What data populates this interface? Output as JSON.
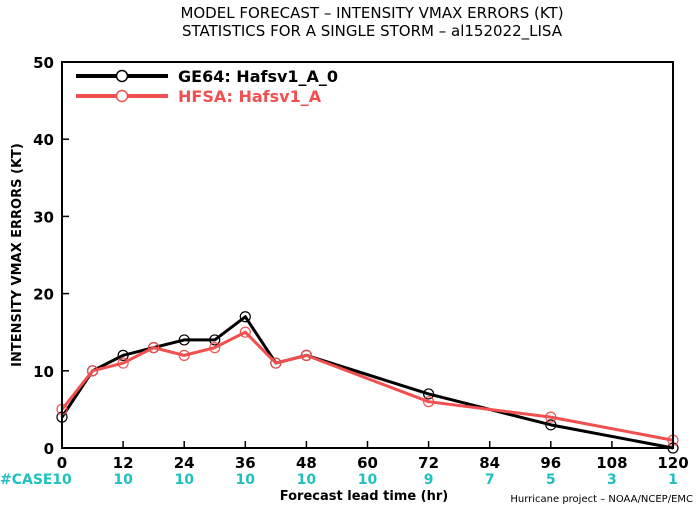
{
  "chart_data": {
    "type": "line",
    "title_line1": "MODEL FORECAST – INTENSITY VMAX ERRORS (KT)",
    "title_line2": "STATISTICS FOR A SINGLE STORM – al152022_LISA",
    "xlabel": "Forecast lead time (hr)",
    "ylabel": "INTENSITY VMAX ERRORS (KT)",
    "xlim": [
      0,
      120
    ],
    "ylim": [
      0,
      50
    ],
    "xticks": [
      0,
      12,
      24,
      36,
      48,
      60,
      72,
      84,
      96,
      108,
      120
    ],
    "yticks": [
      0,
      10,
      20,
      30,
      40,
      50
    ],
    "legend_position": "top-left",
    "series": [
      {
        "name": "GE64: Hafsv1_A_0",
        "color": "#000000",
        "x": [
          0,
          6,
          12,
          18,
          24,
          30,
          36,
          42,
          48,
          72,
          96,
          120
        ],
        "y": [
          4,
          10,
          12,
          13,
          14,
          14,
          17,
          11,
          12,
          7,
          3,
          0
        ]
      },
      {
        "name": "HFSA: Hafsv1_A",
        "color": "#f05050",
        "x": [
          0,
          6,
          12,
          18,
          24,
          30,
          36,
          42,
          48,
          72,
          96,
          120
        ],
        "y": [
          5,
          10,
          11,
          13,
          12,
          13,
          15,
          11,
          12,
          6,
          4,
          1
        ]
      }
    ],
    "case_label": "#CASE",
    "case_color": "#20c0c0",
    "cases": [
      {
        "x": 0,
        "label": "10"
      },
      {
        "x": 12,
        "label": "10"
      },
      {
        "x": 24,
        "label": "10"
      },
      {
        "x": 36,
        "label": "10"
      },
      {
        "x": 48,
        "label": "10"
      },
      {
        "x": 60,
        "label": "10"
      },
      {
        "x": 72,
        "label": "9"
      },
      {
        "x": 84,
        "label": "7"
      },
      {
        "x": 96,
        "label": "5"
      },
      {
        "x": 108,
        "label": "3"
      },
      {
        "x": 120,
        "label": "1"
      }
    ],
    "credit": "Hurricane project – NOAA/NCEP/EMC"
  }
}
